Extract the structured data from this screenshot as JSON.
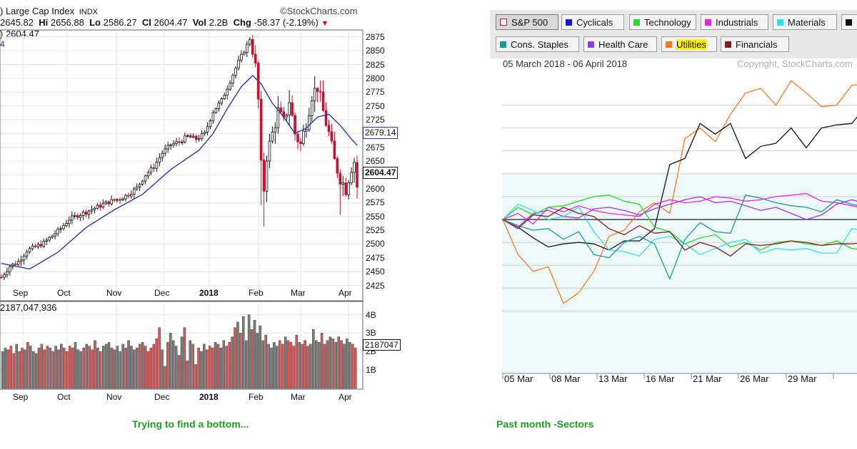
{
  "left_chart": {
    "title": "Large Cap Index",
    "exchange": "INDX",
    "source": "©StockCharts.com",
    "open_fragment": "2645.82",
    "hi_label": "Hi",
    "hi": "2656.88",
    "lo_label": "Lo",
    "lo": "2586.27",
    "cl_label": "Cl",
    "cl": "2604.47",
    "vol_label": "Vol",
    "vol": "2.2B",
    "chg_label": "Chg",
    "chg": "-58.37 (-2.19%)",
    "price_readout": ") 2604.47",
    "ma_readout": "4",
    "ma_value_tag": "2679.14",
    "last_value_tag": "2604.47",
    "volume_readout": "187,047,936",
    "volume_value_tag": "2187047",
    "caption": "Trying to find a bottom..."
  },
  "right_chart": {
    "date_range": "05 March 2018 - 06 April 2018",
    "copyright": "Copyright, StockCharts.com",
    "caption": "Past month -Sectors"
  },
  "colors": {
    "up_candle": "#111111",
    "down_candle": "#c8102e",
    "ma_line": "#2b36a8",
    "vol_up": "#7a7a7a",
    "vol_down": "#d05a5a"
  },
  "chart_data": [
    {
      "type": "candlestick",
      "ylim": [
        2400,
        2885
      ],
      "y_ticks": [
        2425,
        2450,
        2475,
        2500,
        2525,
        2550,
        2575,
        2600,
        2625,
        2650,
        2675,
        2700,
        2725,
        2750,
        2775,
        2800,
        2825,
        2850,
        2875
      ],
      "x_tick_labels": [
        "Sep",
        "Oct",
        "Nov",
        "Dec",
        "2018",
        "Feb",
        "Mar",
        "Apr"
      ],
      "price_path": [
        [
          0,
          2440
        ],
        [
          3,
          2460
        ],
        [
          6,
          2468
        ],
        [
          9,
          2488
        ],
        [
          12,
          2495
        ],
        [
          15,
          2502
        ],
        [
          18,
          2515
        ],
        [
          21,
          2528
        ],
        [
          24,
          2545
        ],
        [
          27,
          2552
        ],
        [
          30,
          2558
        ],
        [
          33,
          2565
        ],
        [
          36,
          2572
        ],
        [
          39,
          2578
        ],
        [
          42,
          2582
        ],
        [
          45,
          2590
        ],
        [
          48,
          2602
        ],
        [
          51,
          2625
        ],
        [
          54,
          2640
        ],
        [
          57,
          2665
        ],
        [
          60,
          2680
        ],
        [
          63,
          2685
        ],
        [
          66,
          2695
        ],
        [
          69,
          2690
        ],
        [
          72,
          2700
        ],
        [
          75,
          2740
        ],
        [
          78,
          2760
        ],
        [
          81,
          2795
        ],
        [
          84,
          2830
        ],
        [
          87,
          2860
        ],
        [
          88,
          2872
        ],
        [
          90,
          2820
        ],
        [
          91,
          2760
        ],
        [
          92,
          2640
        ],
        [
          93,
          2600
        ],
        [
          94,
          2660
        ],
        [
          96,
          2700
        ],
        [
          98,
          2740
        ],
        [
          100,
          2720
        ],
        [
          102,
          2760
        ],
        [
          104,
          2700
        ],
        [
          106,
          2680
        ],
        [
          108,
          2720
        ],
        [
          110,
          2770
        ],
        [
          112,
          2785
        ],
        [
          114,
          2740
        ],
        [
          116,
          2700
        ],
        [
          118,
          2650
        ],
        [
          120,
          2620
        ],
        [
          122,
          2600
        ],
        [
          124,
          2640
        ],
        [
          125,
          2650
        ],
        [
          126,
          2604
        ]
      ],
      "moving_average": [
        [
          0,
          2465
        ],
        [
          10,
          2455
        ],
        [
          20,
          2485
        ],
        [
          30,
          2530
        ],
        [
          40,
          2562
        ],
        [
          50,
          2590
        ],
        [
          60,
          2635
        ],
        [
          70,
          2670
        ],
        [
          75,
          2700
        ],
        [
          80,
          2745
        ],
        [
          85,
          2785
        ],
        [
          89,
          2805
        ],
        [
          92,
          2790
        ],
        [
          96,
          2755
        ],
        [
          100,
          2730
        ],
        [
          104,
          2700
        ],
        [
          108,
          2710
        ],
        [
          112,
          2730
        ],
        [
          116,
          2735
        ],
        [
          120,
          2715
        ],
        [
          124,
          2690
        ],
        [
          126,
          2679
        ]
      ]
    },
    {
      "type": "bar",
      "series_label": "Volume",
      "y_ticks": [
        "1B",
        "2B",
        "3B",
        "4B"
      ],
      "ylim": [
        0,
        4.6
      ],
      "x_tick_labels": [
        "Sep",
        "Oct",
        "Nov",
        "Dec",
        "2018",
        "Feb",
        "Mar",
        "Apr"
      ],
      "values_billions": [
        2.0,
        2.2,
        2.1,
        2.3,
        1.9,
        2.4,
        2.0,
        2.2,
        2.1,
        2.5,
        2.3,
        2.0,
        1.9,
        2.2,
        2.4,
        2.1,
        2.3,
        2.2,
        2.0,
        2.3,
        2.1,
        2.4,
        2.2,
        2.0,
        2.3,
        2.2,
        2.5,
        2.1,
        2.0,
        2.2,
        2.4,
        2.3,
        2.1,
        2.6,
        2.2,
        2.0,
        2.3,
        2.4,
        2.5,
        2.2,
        2.1,
        2.3,
        2.0,
        2.4,
        2.2,
        2.6,
        2.3,
        2.1,
        2.2,
        2.4,
        2.5,
        2.3,
        2.0,
        2.2,
        2.4,
        2.7,
        3.3,
        2.1,
        1.2,
        2.5,
        3.0,
        2.6,
        2.3,
        1.8,
        2.8,
        3.3,
        1.5,
        2.6,
        2.4,
        1.3,
        2.2,
        2.0,
        2.4,
        2.1,
        2.3,
        2.2,
        2.5,
        2.4,
        2.2,
        2.6,
        2.3,
        2.5,
        2.8,
        3.3,
        3.6,
        3.0,
        3.9,
        2.6,
        4.0,
        3.2,
        3.7,
        3.0,
        3.4,
        2.6,
        2.9,
        2.4,
        2.2,
        2.5,
        2.3,
        2.6,
        2.4,
        2.8,
        2.6,
        2.5,
        2.3,
        2.9,
        2.5,
        2.4,
        2.6,
        2.3,
        2.4,
        3.2,
        2.6,
        2.5,
        3.0,
        2.4,
        2.6,
        2.8,
        2.7,
        2.5,
        2.8,
        2.6,
        2.4,
        2.7,
        2.5,
        2.4,
        2.2
      ]
    },
    {
      "type": "line",
      "legend": [
        {
          "name": "S&P 500",
          "color": "#c8102e",
          "active": true
        },
        {
          "name": "Cyclicals",
          "color": "#1a1ac8"
        },
        {
          "name": "Technology",
          "color": "#22dd22"
        },
        {
          "name": "Industrials",
          "color": "#ee22ee"
        },
        {
          "name": "Materials",
          "color": "#33ddee"
        },
        {
          "name": "",
          "color": "#111111"
        },
        {
          "name": "Cons. Staples",
          "color": "#199999"
        },
        {
          "name": "Health Care",
          "color": "#9933ee"
        },
        {
          "name": "Utilities",
          "color": "#ff7722",
          "highlight": true
        },
        {
          "name": "Financials",
          "color": "#8b1a1a"
        }
      ],
      "x_tick_labels": [
        "05 Mar",
        "08 Mar",
        "13 Mar",
        "16 Mar",
        "21 Mar",
        "26 Mar",
        "29 Mar"
      ],
      "x": [
        0,
        1,
        2,
        3,
        4,
        5,
        6,
        7,
        8,
        9,
        10,
        11,
        12,
        13,
        14,
        15,
        16,
        17,
        18,
        19,
        20,
        21,
        22,
        23,
        24
      ],
      "baseline": 0,
      "series": [
        {
          "color": "#ff7722",
          "values": [
            0,
            -2.3,
            -3.4,
            -3.1,
            -5.5,
            -4.8,
            -3.4,
            -1.1,
            -0.7,
            0.5,
            1.1,
            0.4,
            5.3,
            6.0,
            5.1,
            6.9,
            8.3,
            8.6,
            7.5,
            9.1,
            8.3,
            7.4,
            7.5,
            8.8,
            8.9
          ]
        },
        {
          "color": "#111111",
          "values": [
            0,
            -0.5,
            -1.2,
            -1.8,
            -1.6,
            -1.5,
            -1.6,
            -2.0,
            -1.4,
            -1.4,
            -0.6,
            3.6,
            4.0,
            6.3,
            5.6,
            6.3,
            4.0,
            4.8,
            5.0,
            6.0,
            4.7,
            6.0,
            6.2,
            6.3,
            7.5
          ]
        },
        {
          "color": "#ee22ee",
          "values": [
            0,
            0.4,
            -0.3,
            0.8,
            0.5,
            0.9,
            0.6,
            0.4,
            0.3,
            0.2,
            1.0,
            1.3,
            1.1,
            1.2,
            1.5,
            1.4,
            1.2,
            1.3,
            1.5,
            1.6,
            1.7,
            1.2,
            1.1,
            0.9,
            0.7
          ]
        },
        {
          "color": "#9933ee",
          "values": [
            0,
            -0.5,
            0.4,
            0.6,
            0.2,
            0.1,
            0.7,
            0.8,
            0.6,
            0.3,
            0.7,
            1.0,
            1.3,
            1.5,
            1.1,
            1.2,
            0.9,
            0.6,
            0.8,
            0.4,
            0.0,
            0.3,
            1.0,
            1.3,
            1.0
          ]
        },
        {
          "color": "#22dd22",
          "values": [
            0,
            0.8,
            0.3,
            0.8,
            0.9,
            1.2,
            1.5,
            1.6,
            1.2,
            1.0,
            -0.5,
            -0.8,
            -1.6,
            -1.2,
            -1.0,
            -1.8,
            -1.5,
            -2.0,
            -1.5,
            -1.4,
            -1.6,
            -1.7,
            -1.4,
            -1.9,
            -2.0
          ]
        },
        {
          "color": "#33ddee",
          "values": [
            0,
            1.0,
            0.6,
            0.0,
            0.2,
            0.8,
            -0.8,
            -2.0,
            -2.1,
            -2.4,
            -1.3,
            -1.1,
            -1.6,
            -2.3,
            -1.9,
            -1.5,
            -1.3,
            -2.2,
            -1.9,
            -2.0,
            -1.9,
            -2.2,
            -2.2,
            -0.6,
            -0.8
          ]
        },
        {
          "color": "#199999",
          "values": [
            0,
            -0.4,
            -0.7,
            -0.6,
            -1.3,
            -0.8,
            -2.3,
            -2.5,
            -1.5,
            -1.1,
            -1.6,
            -3.9,
            -1.3,
            -0.2,
            -0.8,
            -0.9,
            1.6,
            1.4,
            1.1,
            0.9,
            0.8,
            0.5,
            1.3,
            1.0,
            0.8
          ]
        },
        {
          "color": "#8b1a1a",
          "values": [
            0,
            -0.6,
            0.3,
            0.2,
            0.8,
            0.4,
            0.2,
            -0.6,
            -1.0,
            -0.4,
            -0.9,
            -0.8,
            -2.0,
            -1.5,
            -1.8,
            -2.4,
            -1.6,
            -1.7,
            -1.6,
            -1.4,
            -1.5,
            -1.7,
            -1.6,
            -1.6,
            -1.5
          ]
        }
      ]
    }
  ]
}
